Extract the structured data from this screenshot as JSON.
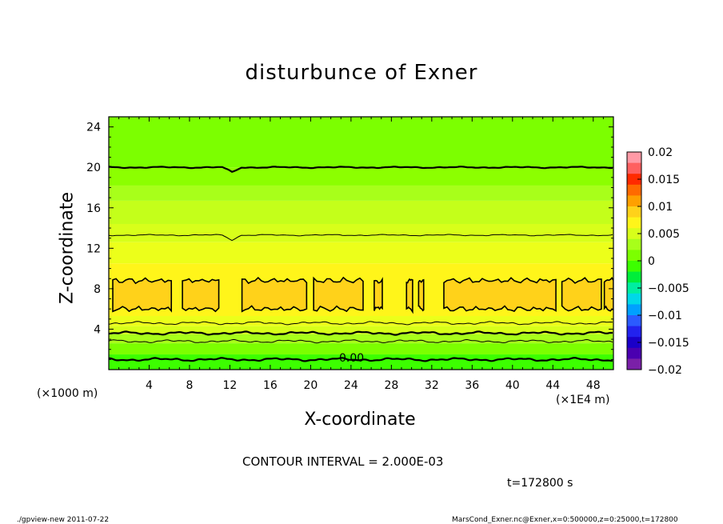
{
  "chart_data": {
    "type": "contour",
    "title": "disturbunce of Exner",
    "xlabel": "X-coordinate",
    "ylabel": "Z-coordinate",
    "x_unit_left": "(×1000 m)",
    "x_unit_right": "(×1E4 m)",
    "xlim": [
      0,
      50
    ],
    "ylim": [
      0,
      25
    ],
    "x_ticks": [
      4,
      8,
      12,
      16,
      20,
      24,
      28,
      32,
      36,
      40,
      44,
      48
    ],
    "x_tick_labels": [
      "4",
      "8",
      "12",
      "16",
      "20",
      "24",
      "28",
      "32",
      "36",
      "40",
      "44",
      "48"
    ],
    "y_ticks": [
      4,
      8,
      12,
      16,
      20,
      24
    ],
    "y_tick_labels": [
      "4",
      "8",
      "12",
      "16",
      "20",
      "24"
    ],
    "contour_interval_text": "CONTOUR INTERVAL = 2.000E-03",
    "time_text": "t=172800 s",
    "contour_label": "0.00",
    "colorbar": {
      "ticks": [
        0.02,
        0.015,
        0.01,
        0.005,
        0,
        -0.005,
        -0.01,
        -0.015,
        -0.02
      ],
      "tick_labels": [
        "0.02",
        "0.015",
        "0.01",
        "0.005",
        "0",
        "−0.005",
        "−0.01",
        "−0.015",
        "−0.02"
      ],
      "colors": [
        "#ff9aa6",
        "#ff6060",
        "#ff2a00",
        "#ff6a00",
        "#ffa000",
        "#ffd21a",
        "#fff51a",
        "#d8ff1a",
        "#a8ff1a",
        "#7cff00",
        "#3cff00",
        "#00ee3a",
        "#00eea0",
        "#00d8e8",
        "#00a0ff",
        "#2b5bff",
        "#2222ee",
        "#1a00c8",
        "#4a00b0",
        "#7a20a8"
      ]
    },
    "bands": [
      {
        "z_top": 25,
        "z_bottom": 20.0,
        "color": "#7cff00"
      },
      {
        "z_top": 20.0,
        "z_bottom": 18.2,
        "color": "#8cff00"
      },
      {
        "z_top": 18.2,
        "z_bottom": 16.7,
        "color": "#a8ff1a"
      },
      {
        "z_top": 16.7,
        "z_bottom": 14.4,
        "color": "#c4ff1a"
      },
      {
        "z_top": 14.4,
        "z_bottom": 12.6,
        "color": "#d8ff1a"
      },
      {
        "z_top": 12.6,
        "z_bottom": 10.5,
        "color": "#ecff1a"
      },
      {
        "z_top": 10.5,
        "z_bottom": 5.3,
        "color": "#fff51a"
      },
      {
        "z_top": 5.3,
        "z_bottom": 4.3,
        "color": "#ecff1a"
      },
      {
        "z_top": 4.3,
        "z_bottom": 3.5,
        "color": "#d8ff1a"
      },
      {
        "z_top": 3.5,
        "z_bottom": 2.6,
        "color": "#a8ff1a"
      },
      {
        "z_top": 2.6,
        "z_bottom": 1.5,
        "color": "#7cff00"
      },
      {
        "z_top": 1.5,
        "z_bottom": 0,
        "color": "#3cff00"
      }
    ],
    "contours": [
      {
        "z": 20.0,
        "width": 2.2
      },
      {
        "z": 13.3,
        "width": 1.0
      },
      {
        "z": 4.6,
        "width": 1.0
      },
      {
        "z": 3.6,
        "width": 2.2
      },
      {
        "z": 2.8,
        "width": 1.0
      },
      {
        "z": 1.0,
        "width": 2.2
      }
    ],
    "blobs": [
      {
        "x0": 0.4,
        "x1": 6.2
      },
      {
        "x0": 7.3,
        "x1": 10.9
      },
      {
        "x0": 13.2,
        "x1": 19.6
      },
      {
        "x0": 20.3,
        "x1": 25.2
      },
      {
        "x0": 26.3,
        "x1": 27.1
      },
      {
        "x0": 29.5,
        "x1": 30.1
      },
      {
        "x0": 30.7,
        "x1": 31.2
      },
      {
        "x0": 33.2,
        "x1": 44.3
      },
      {
        "x0": 44.9,
        "x1": 48.8
      },
      {
        "x0": 49.1,
        "x1": 50
      }
    ]
  },
  "footer": {
    "left": "./gpview-new   2011-07-22",
    "right": "MarsCond_Exner.nc@Exner,x=0:500000,z=0:25000,t=172800"
  }
}
